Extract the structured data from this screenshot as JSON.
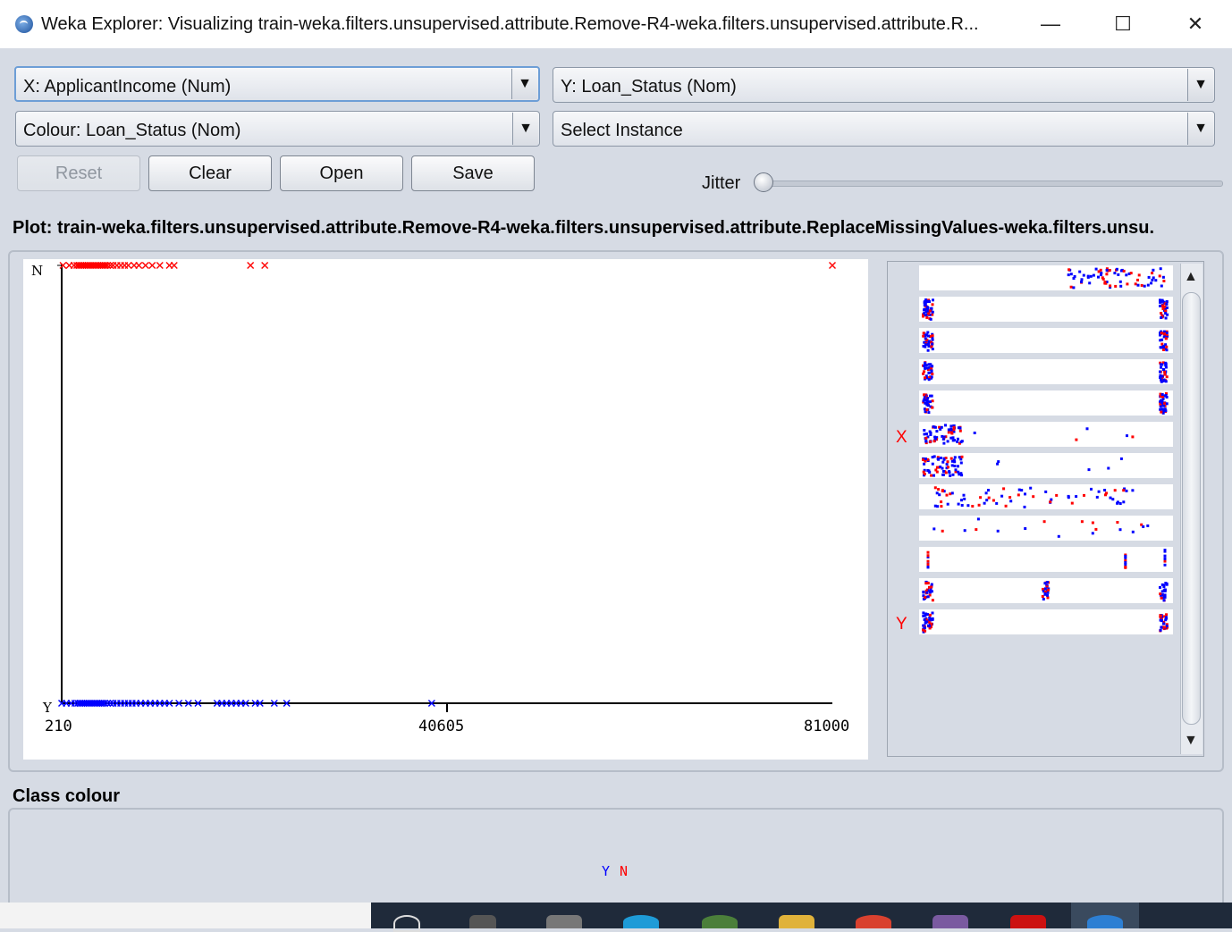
{
  "window": {
    "title": "Weka Explorer: Visualizing train-weka.filters.unsupervised.attribute.Remove-R4-weka.filters.unsupervised.attribute.R...",
    "minimize": "—",
    "maximize": "☐",
    "close": "✕"
  },
  "controls": {
    "x_select": "X: ApplicantIncome (Num)",
    "y_select": "Y: Loan_Status (Nom)",
    "colour_select": "Colour: Loan_Status (Nom)",
    "instance_select": "Select Instance",
    "reset": "Reset",
    "clear": "Clear",
    "open": "Open",
    "save": "Save",
    "jitter_label": "Jitter",
    "jitter_value": 0
  },
  "plot_title": "Plot: train-weka.filters.unsupervised.attribute.Remove-R4-weka.filters.unsupervised.attribute.ReplaceMissingValues-weka.filters.unsu.",
  "chart_data": {
    "type": "scatter",
    "xlabel": "",
    "ylabel": "",
    "xlim": [
      210,
      81000
    ],
    "x_ticks": [
      "210",
      "40605",
      "81000"
    ],
    "y_categories": [
      "Y",
      "N"
    ],
    "series": [
      {
        "name": "N",
        "color": "#ff0000",
        "category": "N",
        "x": [
          350,
          1000,
          1500,
          1800,
          2000,
          2200,
          2400,
          2600,
          2800,
          3000,
          3200,
          3400,
          3600,
          3800,
          4000,
          4200,
          4400,
          4600,
          4800,
          5000,
          5300,
          5600,
          6000,
          6400,
          6800,
          7200,
          7800,
          8300,
          9000,
          9700,
          10500,
          11500,
          12000,
          20000,
          21500,
          81000
        ]
      },
      {
        "name": "Y",
        "color": "#0000ff",
        "category": "Y",
        "x": [
          210,
          700,
          1200,
          1600,
          1900,
          2100,
          2300,
          2500,
          2700,
          2900,
          3100,
          3300,
          3500,
          3700,
          3900,
          4100,
          4300,
          4500,
          4700,
          5000,
          5300,
          5600,
          6000,
          6400,
          6800,
          7200,
          7600,
          8000,
          8500,
          9000,
          9500,
          10000,
          10500,
          11000,
          11500,
          12500,
          13500,
          14500,
          16500,
          17000,
          17500,
          18000,
          18500,
          19000,
          19500,
          20500,
          21000,
          22500,
          23800,
          39000
        ]
      }
    ]
  },
  "matrix": {
    "x_marker": "X",
    "y_marker": "Y"
  },
  "class_colour": {
    "title": "Class colour",
    "labels": [
      {
        "text": "Y",
        "color": "#0000ff"
      },
      {
        "text": "N",
        "color": "#ff0000"
      }
    ]
  }
}
